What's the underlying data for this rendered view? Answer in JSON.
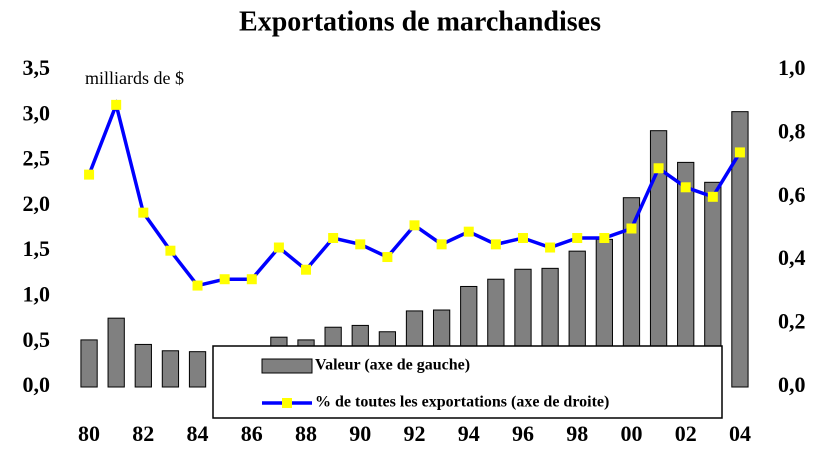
{
  "chart_data": {
    "type": "bar_line",
    "title": "Exportations de marchandises",
    "subtitle": "milliards de $",
    "categories": [
      "80",
      null,
      "82",
      null,
      "84",
      null,
      "86",
      null,
      "88",
      null,
      "90",
      null,
      "92",
      null,
      "94",
      null,
      "96",
      null,
      "98",
      null,
      "00",
      null,
      "02",
      null,
      "04"
    ],
    "series": [
      {
        "name": "Valeur (axe de gauche)",
        "type": "bar",
        "color": "#808080",
        "values": [
          0.52,
          0.76,
          0.47,
          0.4,
          0.39,
          0.4,
          0.45,
          0.55,
          0.52,
          0.66,
          0.68,
          0.61,
          0.84,
          0.85,
          1.11,
          1.19,
          1.3,
          1.31,
          1.5,
          1.63,
          2.09,
          2.83,
          2.48,
          2.26,
          3.04
        ]
      },
      {
        "name": "% de toutes les exportations (axe de droite)",
        "type": "line",
        "axis": "y2",
        "color": "#0000ff",
        "marker_color": "#ffff00",
        "values": [
          0.67,
          0.89,
          0.55,
          0.43,
          0.32,
          0.34,
          0.34,
          0.44,
          0.37,
          0.47,
          0.45,
          0.41,
          0.51,
          0.45,
          0.49,
          0.45,
          0.47,
          0.44,
          0.47,
          0.47,
          0.5,
          0.69,
          0.63,
          0.6,
          0.74
        ]
      }
    ],
    "ylim": [
      0,
      3.5
    ],
    "yticks": [
      {
        "value": 0,
        "label": "0,0"
      },
      {
        "value": 0.5,
        "label": "0,5"
      },
      {
        "value": 1,
        "label": "1,0"
      },
      {
        "value": 1.5,
        "label": "1,5"
      },
      {
        "value": 2,
        "label": "2,0"
      },
      {
        "value": 2.5,
        "label": "2,5"
      },
      {
        "value": 3,
        "label": "3,0"
      },
      {
        "value": 3.5,
        "label": "3,5"
      }
    ],
    "y2lim": [
      0,
      1
    ],
    "y2ticks": [
      {
        "value": 0,
        "label": "0,0"
      },
      {
        "value": 0.2,
        "label": "0,2"
      },
      {
        "value": 0.4,
        "label": "0,4"
      },
      {
        "value": 0.6,
        "label": "0,6"
      },
      {
        "value": 0.8,
        "label": "0,8"
      },
      {
        "value": 1,
        "label": "1,0"
      }
    ],
    "grid": false
  }
}
